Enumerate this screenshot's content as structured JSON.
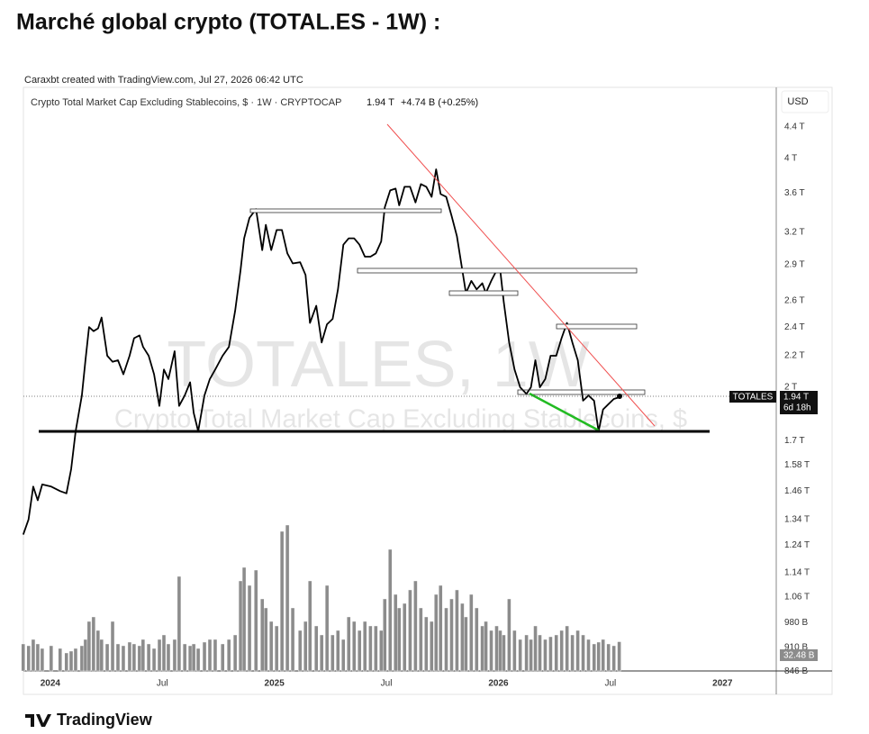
{
  "header": {
    "title": "Marché global crypto (TOTAL.ES - 1W) :",
    "credit": "Caraxbt created with TradingView.com, Jul 27, 2026 06:42 UTC",
    "symbol_line": "Crypto Total Market Cap Excluding Stablecoins, $ · 1W · CRYPTOCAP",
    "last": "1.94 T",
    "change": "+4.74 B (+0.25%)",
    "currency": "USD"
  },
  "watermark": {
    "line1": "TOTALES, 1W",
    "line2": "Crypto Total Market Cap Excluding Stablecoins, $"
  },
  "footer": {
    "brand": "TradingView"
  },
  "chart_data": {
    "type": "line",
    "ylog": true,
    "grid": false,
    "price_tag": {
      "symbol": "TOTALES",
      "label": "1.94 T",
      "countdown": "6d 18h"
    },
    "volume_tag": "32.48 B",
    "xlim": [
      2023.88,
      2027.24
    ],
    "xticks": [
      {
        "value": 2024,
        "label": "2024"
      },
      {
        "value": 2024.5,
        "label": "Jul"
      },
      {
        "value": 2025,
        "label": "2025"
      },
      {
        "value": 2025.5,
        "label": "Jul"
      },
      {
        "value": 2026,
        "label": "2026"
      },
      {
        "value": 2026.5,
        "label": "Jul"
      },
      {
        "value": 2027,
        "label": "2027"
      }
    ],
    "ylim": [
      0.791,
      4.96
    ],
    "yticks": [
      {
        "value": 4.4,
        "label": "4.4 T"
      },
      {
        "value": 4,
        "label": "4 T"
      },
      {
        "value": 3.6,
        "label": "3.6 T"
      },
      {
        "value": 3.2,
        "label": "3.2 T"
      },
      {
        "value": 2.9,
        "label": "2.9 T"
      },
      {
        "value": 2.6,
        "label": "2.6 T"
      },
      {
        "value": 2.4,
        "label": "2.4 T"
      },
      {
        "value": 2.2,
        "label": "2.2 T"
      },
      {
        "value": 2,
        "label": "2 T"
      },
      {
        "value": 1.7,
        "label": "1.7 T"
      },
      {
        "value": 1.58,
        "label": "1.58 T"
      },
      {
        "value": 1.46,
        "label": "1.46 T"
      },
      {
        "value": 1.34,
        "label": "1.34 T"
      },
      {
        "value": 1.24,
        "label": "1.24 T"
      },
      {
        "value": 1.14,
        "label": "1.14 T"
      },
      {
        "value": 1.06,
        "label": "1.06 T"
      },
      {
        "value": 0.98,
        "label": "980 B"
      },
      {
        "value": 0.91,
        "label": "910 B"
      },
      {
        "value": 0.846,
        "label": "846 B"
      }
    ],
    "y2lim": [
      0,
      648
    ],
    "x": [
      2023.879,
      2023.903,
      2023.924,
      2023.944,
      2023.964,
      2024.004,
      2024.044,
      2024.072,
      2024.093,
      2024.113,
      2024.141,
      2024.157,
      2024.173,
      2024.193,
      2024.213,
      2024.229,
      2024.254,
      2024.278,
      2024.302,
      2024.326,
      2024.354,
      2024.374,
      2024.398,
      2024.414,
      2024.439,
      2024.463,
      2024.487,
      2024.507,
      2024.527,
      2024.555,
      2024.575,
      2024.6,
      2024.624,
      2024.64,
      2024.66,
      2024.688,
      2024.712,
      2024.736,
      2024.769,
      2024.797,
      2024.825,
      2024.849,
      2024.865,
      2024.889,
      2024.918,
      2024.946,
      2024.962,
      2024.986,
      2025.01,
      2025.034,
      2025.058,
      2025.082,
      2025.115,
      2025.139,
      2025.159,
      2025.187,
      2025.211,
      2025.235,
      2025.26,
      2025.284,
      2025.308,
      2025.332,
      2025.356,
      2025.38,
      2025.404,
      2025.429,
      2025.453,
      2025.477,
      2025.493,
      2025.517,
      2025.541,
      2025.557,
      2025.581,
      2025.606,
      2025.63,
      2025.654,
      2025.678,
      2025.702,
      2025.722,
      2025.742,
      2025.767,
      2025.791,
      2025.815,
      2025.839,
      2025.855,
      2025.879,
      2025.903,
      2025.928,
      2025.944,
      2025.968,
      2025.992,
      2026.008,
      2026.024,
      2026.048,
      2026.072,
      2026.097,
      2026.125,
      2026.145,
      2026.165,
      2026.185,
      2026.209,
      2026.233,
      2026.258,
      2026.282,
      2026.306,
      2026.33,
      2026.354,
      2026.378,
      2026.402,
      2026.427,
      2026.447,
      2026.467,
      2026.491,
      2026.515,
      2026.539
    ],
    "series": [
      {
        "color": "#000000",
        "values": [
          1.28,
          1.34,
          1.48,
          1.42,
          1.49,
          1.48,
          1.46,
          1.45,
          1.56,
          1.75,
          1.95,
          2.17,
          2.4,
          2.37,
          2.39,
          2.47,
          2.2,
          2.16,
          2.17,
          2.08,
          2.2,
          2.32,
          2.34,
          2.26,
          2.2,
          2.08,
          1.89,
          2.11,
          2.05,
          2.23,
          1.89,
          1.95,
          2.03,
          1.85,
          1.75,
          1.95,
          2.05,
          2.11,
          2.2,
          2.26,
          2.52,
          2.85,
          3.14,
          3.34,
          3.43,
          3.03,
          3.27,
          3.03,
          3.22,
          3.22,
          3.0,
          2.91,
          2.92,
          2.81,
          2.43,
          2.56,
          2.29,
          2.42,
          2.46,
          2.69,
          3.08,
          3.14,
          3.14,
          3.08,
          2.97,
          2.97,
          3.0,
          3.11,
          3.45,
          3.63,
          3.65,
          3.47,
          3.67,
          3.67,
          3.5,
          3.7,
          3.67,
          3.56,
          3.87,
          3.59,
          3.56,
          3.36,
          3.16,
          2.85,
          2.66,
          2.76,
          2.69,
          2.74,
          2.66,
          2.76,
          2.85,
          2.85,
          2.59,
          2.29,
          2.11,
          2.0,
          1.96,
          2.0,
          2.17,
          2.0,
          2.05,
          2.2,
          2.2,
          2.32,
          2.43,
          2.29,
          2.17,
          1.92,
          1.95,
          1.92,
          1.75,
          1.87,
          1.9,
          1.93,
          1.94
        ]
      },
      {
        "color": "#8c8c8c",
        "axis": "y2",
        "type": "bar",
        "values": [
          30,
          28,
          35,
          30,
          25,
          28,
          25,
          20,
          22,
          25,
          28,
          35,
          55,
          60,
          45,
          35,
          30,
          55,
          30,
          28,
          32,
          30,
          28,
          35,
          30,
          25,
          35,
          40,
          30,
          35,
          105,
          30,
          28,
          30,
          25,
          32,
          35,
          35,
          30,
          35,
          40,
          100,
          115,
          95,
          112,
          80,
          70,
          55,
          50,
          155,
          162,
          70,
          45,
          55,
          100,
          50,
          40,
          95,
          40,
          45,
          35,
          60,
          55,
          45,
          55,
          50,
          50,
          45,
          80,
          135,
          85,
          70,
          75,
          90,
          100,
          70,
          60,
          55,
          85,
          95,
          70,
          80,
          90,
          75,
          60,
          85,
          70,
          50,
          55,
          45,
          50,
          45,
          40,
          80,
          45,
          35,
          40,
          35,
          50,
          40,
          35,
          38,
          40,
          45,
          50,
          40,
          45,
          40,
          35,
          30,
          32,
          35,
          30,
          28,
          32.48
        ]
      }
    ]
  }
}
